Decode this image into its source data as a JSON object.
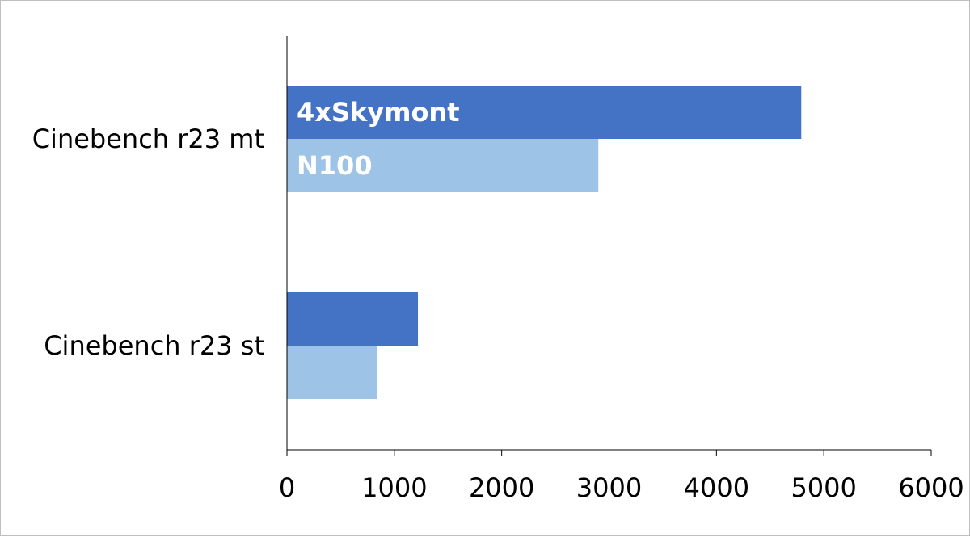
{
  "chart_data": {
    "type": "bar",
    "orientation": "horizontal",
    "title": "",
    "xlabel": "",
    "ylabel": "",
    "categories": [
      "Cinebench r23 mt",
      "Cinebench r23 st"
    ],
    "series": [
      {
        "name": "4xSkymont",
        "values": [
          4790,
          1220
        ],
        "color": "#4472c4"
      },
      {
        "name": "N100",
        "values": [
          2900,
          840
        ],
        "color": "#9dc3e6"
      }
    ],
    "xlim": [
      0,
      6000
    ],
    "xticks": [
      0,
      1000,
      2000,
      3000,
      4000,
      5000,
      6000
    ],
    "xtick_labels": [
      "0",
      "1000",
      "2000",
      "3000",
      "4000",
      "5000",
      "6000"
    ],
    "grid": false,
    "legend": "none"
  }
}
